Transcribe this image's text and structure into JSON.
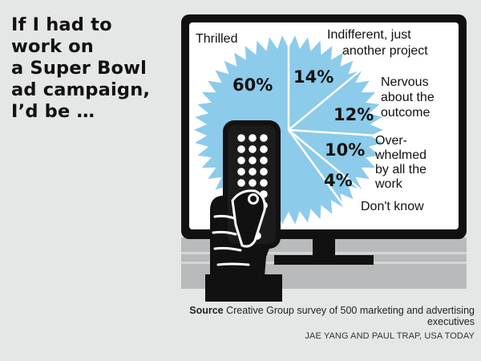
{
  "headline": {
    "lines": [
      "If I had to",
      "work on",
      "a Super Bowl",
      "ad campaign,",
      "I’d be …"
    ]
  },
  "chart_data": {
    "type": "pie",
    "title": "If I had to work on a Super Bowl ad campaign, I’d be …",
    "unit": "%",
    "slices": [
      {
        "label": "Thrilled",
        "value": 60,
        "value_label": "60%",
        "label_lines": [
          "Thrilled"
        ]
      },
      {
        "label": "Indifferent, just another project",
        "value": 14,
        "value_label": "14%",
        "label_lines": [
          "Indifferent, just",
          "another project"
        ]
      },
      {
        "label": "Nervous about the outcome",
        "value": 12,
        "value_label": "12%",
        "label_lines": [
          "Nervous",
          "about the",
          "outcome"
        ]
      },
      {
        "label": "Overwhelmed by all the work",
        "value": 10,
        "value_label": "10%",
        "label_lines": [
          "Over-",
          "whelmed",
          "by all the",
          "work"
        ]
      },
      {
        "label": "Don't know",
        "value": 4,
        "value_label": "4%",
        "label_lines": [
          "Don't know"
        ]
      }
    ]
  },
  "source": {
    "label": "Source",
    "text": "Creative Group survey of 500 marketing and advertising executives"
  },
  "credit": "JAE YANG AND PAUL TRAP, USA TODAY",
  "colors": {
    "background": "#e5e6e6",
    "slice_fill": "#8ccbea",
    "divider": "#ffffff",
    "screen": "#ffffff",
    "tv_frame": "#111111",
    "ink": "#111111",
    "stand": "#b9babb"
  }
}
